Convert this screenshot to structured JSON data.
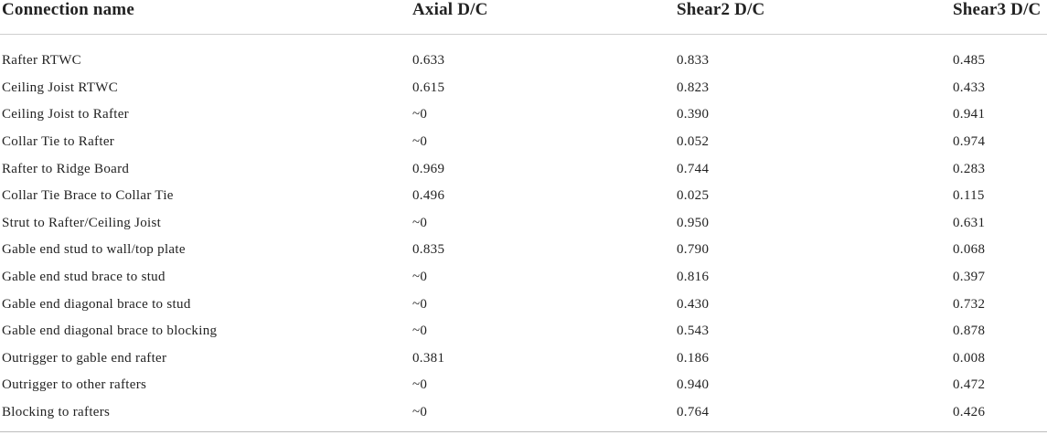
{
  "table": {
    "headers": [
      "Connection name",
      "Axial D/C",
      "Shear2 D/C",
      "Shear3 D/C"
    ],
    "rows": [
      {
        "name": "Rafter RTWC",
        "axial": "0.633",
        "shear2": "0.833",
        "shear3": "0.485"
      },
      {
        "name": "Ceiling Joist RTWC",
        "axial": "0.615",
        "shear2": "0.823",
        "shear3": "0.433"
      },
      {
        "name": "Ceiling Joist to Rafter",
        "axial": "~0",
        "shear2": "0.390",
        "shear3": "0.941"
      },
      {
        "name": "Collar Tie to Rafter",
        "axial": "~0",
        "shear2": "0.052",
        "shear3": "0.974"
      },
      {
        "name": "Rafter to Ridge Board",
        "axial": "0.969",
        "shear2": "0.744",
        "shear3": "0.283"
      },
      {
        "name": "Collar Tie Brace to Collar Tie",
        "axial": "0.496",
        "shear2": "0.025",
        "shear3": "0.115"
      },
      {
        "name": "Strut to Rafter/Ceiling Joist",
        "axial": "~0",
        "shear2": "0.950",
        "shear3": "0.631"
      },
      {
        "name": "Gable end stud to wall/top plate",
        "axial": "0.835",
        "shear2": "0.790",
        "shear3": "0.068"
      },
      {
        "name": "Gable end stud brace to stud",
        "axial": "~0",
        "shear2": "0.816",
        "shear3": "0.397"
      },
      {
        "name": "Gable end diagonal brace to stud",
        "axial": "~0",
        "shear2": "0.430",
        "shear3": "0.732"
      },
      {
        "name": "Gable end diagonal brace to blocking",
        "axial": "~0",
        "shear2": "0.543",
        "shear3": "0.878"
      },
      {
        "name": "Outrigger to gable end rafter",
        "axial": "0.381",
        "shear2": "0.186",
        "shear3": "0.008"
      },
      {
        "name": "Outrigger to other rafters",
        "axial": "~0",
        "shear2": "0.940",
        "shear3": "0.472"
      },
      {
        "name": "Blocking to rafters",
        "axial": "~0",
        "shear2": "0.764",
        "shear3": "0.426"
      }
    ]
  }
}
